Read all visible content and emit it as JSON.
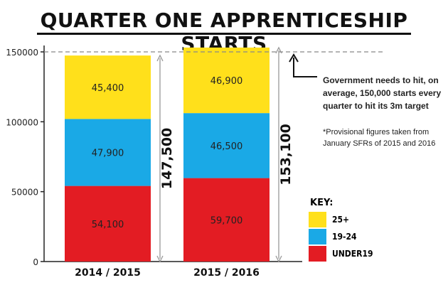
{
  "title": "QUARTER ONE APPRENTICESHIP STARTS",
  "annotations": {
    "government_note": "Government needs to hit, on average, 150,000 starts every quarter to hit its 3m target",
    "provisional_note": "*Provisional figures taken from January SFRs of 2015 and 2016"
  },
  "legend": {
    "title": "KEY:",
    "items": [
      {
        "label": "25+",
        "color": "#ffe01b"
      },
      {
        "label": "19-24",
        "color": "#1aa9e6"
      },
      {
        "label": "UNDER19",
        "color": "#e31c23"
      }
    ]
  },
  "chart_data": {
    "type": "bar",
    "stacked": true,
    "categories": [
      "2014 / 2015",
      "2015 / 2016"
    ],
    "series": [
      {
        "name": "UNDER19",
        "values": [
          54100,
          59700
        ],
        "labels": [
          "54,100",
          "59,700"
        ],
        "color": "#e31c23"
      },
      {
        "name": "19-24",
        "values": [
          47900,
          46500
        ],
        "labels": [
          "47,900",
          "46,500"
        ],
        "color": "#1aa9e6"
      },
      {
        "name": "25+",
        "values": [
          45400,
          46900
        ],
        "labels": [
          "45,400",
          "46,900"
        ],
        "color": "#ffe01b"
      }
    ],
    "totals": [
      147500,
      153100
    ],
    "total_labels": [
      "147,500",
      "153,100"
    ],
    "target": 150000,
    "yticks": [
      "0",
      "50000",
      "100000",
      "150000"
    ],
    "ylim": [
      0,
      150000
    ],
    "grid": false,
    "legend_position": "right"
  }
}
